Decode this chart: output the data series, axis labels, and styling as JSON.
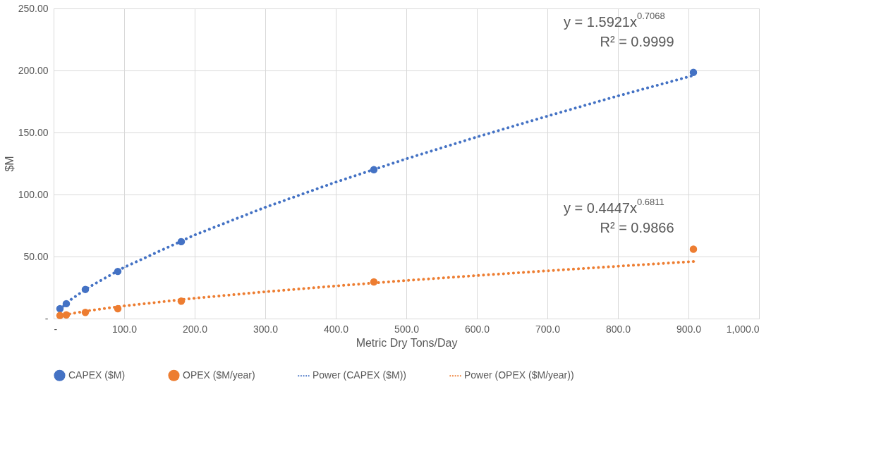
{
  "chart_data": {
    "type": "scatter",
    "xlabel": "Metric Dry Tons/Day",
    "ylabel": "$M",
    "xlim": [
      0,
      1000
    ],
    "ylim": [
      0,
      250
    ],
    "xticks": [
      {
        "value": 0,
        "label": "-"
      },
      {
        "value": 100,
        "label": "100.0"
      },
      {
        "value": 200,
        "label": "200.0"
      },
      {
        "value": 300,
        "label": "300.0"
      },
      {
        "value": 400,
        "label": "400.0"
      },
      {
        "value": 500,
        "label": "500.0"
      },
      {
        "value": 600,
        "label": "600.0"
      },
      {
        "value": 700,
        "label": "700.0"
      },
      {
        "value": 800,
        "label": "800.0"
      },
      {
        "value": 900,
        "label": "900.0"
      },
      {
        "value": 1000,
        "label": "1,000.0"
      }
    ],
    "yticks": [
      {
        "value": 0,
        "label": "-"
      },
      {
        "value": 50,
        "label": "50.00"
      },
      {
        "value": 100,
        "label": "100.00"
      },
      {
        "value": 150,
        "label": "150.00"
      },
      {
        "value": 200,
        "label": "200.00"
      },
      {
        "value": 250,
        "label": "250.00"
      }
    ],
    "grid": true,
    "legend": "bottom",
    "series": [
      {
        "name": "CAPEX ($M)",
        "marker": "circle",
        "color": "#4472c4",
        "x": [
          9,
          18,
          45,
          91,
          181,
          454,
          907
        ],
        "values": [
          8,
          12,
          23.5,
          38,
          62,
          120,
          198.5
        ]
      },
      {
        "name": "OPEX ($M/year)",
        "marker": "circle",
        "color": "#ed7d31",
        "x": [
          9,
          18,
          45,
          91,
          181,
          454,
          907
        ],
        "values": [
          2.5,
          3,
          5,
          8,
          14,
          29.5,
          56
        ]
      },
      {
        "name": "Power (CAPEX ($M))",
        "type": "line",
        "line_style": "dotted",
        "color": "#4472c4",
        "x": [
          9,
          25,
          50,
          100,
          200,
          300,
          400,
          500,
          600,
          700,
          800,
          907
        ],
        "values": [
          7.5,
          15.5,
          25.3,
          41.3,
          67.4,
          89.7,
          110.0,
          128.8,
          146.4,
          163.2,
          179.5,
          196.0
        ]
      },
      {
        "name": "Power (OPEX ($M/year))",
        "type": "line",
        "line_style": "dotted",
        "color": "#ed7d31",
        "x": [
          9,
          25,
          50,
          100,
          200,
          300,
          400,
          500,
          600,
          700,
          800,
          907
        ],
        "values": [
          2.0,
          4.0,
          6.4,
          10.2,
          16.4,
          21.6,
          26.3,
          30.7,
          34.7,
          38.5,
          42.2,
          46.0
        ]
      }
    ],
    "annotations": [
      "y = 1.5921x$^{0.7068}$\nR² = 0.9999",
      "y = 0.4447x$^{0.6811}$\nR² = 0.9866"
    ]
  }
}
